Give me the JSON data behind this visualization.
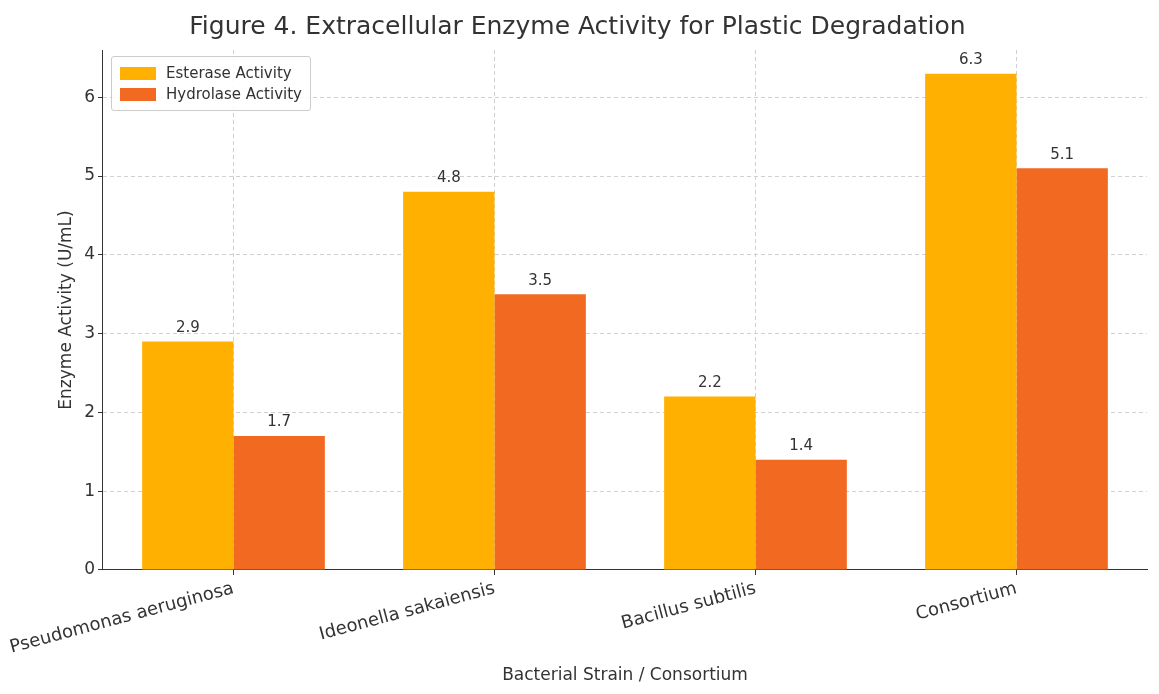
{
  "chart_data": {
    "type": "bar",
    "title": "Figure 4. Extracellular Enzyme Activity for Plastic Degradation",
    "xlabel": "Bacterial Strain / Consortium",
    "ylabel": "Enzyme Activity (U/mL)",
    "categories": [
      "Pseudomonas aeruginosa",
      "Ideonella sakaiensis",
      "Bacillus subtilis",
      "Consortium"
    ],
    "series": [
      {
        "name": "Esterase Activity",
        "color": "#ffb000",
        "values": [
          2.9,
          4.8,
          2.2,
          6.3
        ]
      },
      {
        "name": "Hydrolase Activity",
        "color": "#f26a21",
        "values": [
          1.7,
          3.5,
          1.4,
          5.1
        ]
      }
    ],
    "ylim": [
      0,
      6.6
    ],
    "yticks": [
      0,
      1,
      2,
      3,
      4,
      5,
      6
    ],
    "grid": true,
    "legend": "top left",
    "data_labels": true
  }
}
